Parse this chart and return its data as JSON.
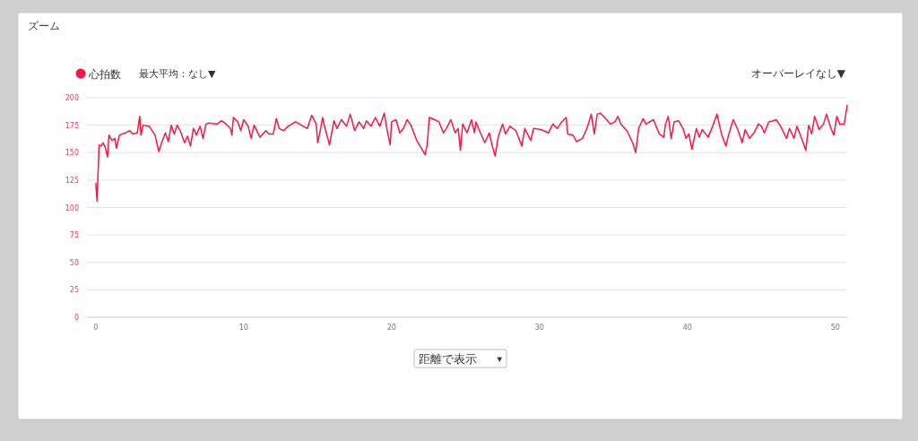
{
  "chart_data": {
    "type": "line",
    "title": "ズーム",
    "annotations": [
      "最大平均：なし▼",
      "オーバーレイなし▼",
      "距離で表示",
      "▾"
    ],
    "x": [
      0,
      0.08,
      0.22,
      0.38,
      0.48,
      0.63,
      0.79,
      0.89,
      1.09,
      1.29,
      1.39,
      1.6,
      2.0,
      2.3,
      2.5,
      2.8,
      2.97,
      3.05,
      3.2,
      3.6,
      4.0,
      4.26,
      4.5,
      4.7,
      4.9,
      5.1,
      5.3,
      5.5,
      5.7,
      6.0,
      6.2,
      6.4,
      6.6,
      6.8,
      7.05,
      7.25,
      7.45,
      7.65,
      8.2,
      8.5,
      8.8,
      9.1,
      9.2,
      9.3,
      9.6,
      9.8,
      10.0,
      10.3,
      10.5,
      10.7,
      11.1,
      11.5,
      11.7,
      12.0,
      12.2,
      12.4,
      12.7,
      13.0,
      13.5,
      13.9,
      14.3,
      14.6,
      14.9,
      15.0,
      15.2,
      15.33,
      15.5,
      15.8,
      16.1,
      16.3,
      16.6,
      16.95,
      17.2,
      17.5,
      17.8,
      18.1,
      18.3,
      18.6,
      18.9,
      19.2,
      19.5,
      19.7,
      19.9,
      20.0,
      20.3,
      20.55,
      20.8,
      21.05,
      21.3,
      21.7,
      22.1,
      22.26,
      22.4,
      22.55,
      22.9,
      23.2,
      23.5,
      23.7,
      24.0,
      24.3,
      24.5,
      24.65,
      24.8,
      25.1,
      25.4,
      25.6,
      25.7,
      26.0,
      26.3,
      26.6,
      26.8,
      27.0,
      27.2,
      27.5,
      27.7,
      28.0,
      28.4,
      28.8,
      29.0,
      29.4,
      29.6,
      30.1,
      30.6,
      30.9,
      31.2,
      31.5,
      31.8,
      31.9,
      32.26,
      32.5,
      32.9,
      33.2,
      33.5,
      33.7,
      33.9,
      34.1,
      34.4,
      34.8,
      35.1,
      35.3,
      35.5,
      35.9,
      36.3,
      36.5,
      36.7,
      37.0,
      37.2,
      37.7,
      38.1,
      38.4,
      38.5,
      38.7,
      38.9,
      39.1,
      39.4,
      39.7,
      39.9,
      40.1,
      40.3,
      40.6,
      40.8,
      41.0,
      41.4,
      41.7,
      42.0,
      42.3,
      42.6,
      42.8,
      43.1,
      43.4,
      43.7,
      43.9,
      44.2,
      44.5,
      44.8,
      45.0,
      45.2,
      45.5,
      45.8,
      46.0,
      46.3,
      46.7,
      46.9,
      47.2,
      47.4,
      47.8,
      48.0,
      48.2,
      48.4,
      48.6,
      48.9,
      49.2,
      49.4,
      49.7,
      49.9,
      50.1,
      50.3,
      50.6,
      50.8
    ],
    "series": [
      {
        "name": "心拍数",
        "color": "#ff1447",
        "values": [
          122,
          106,
          157,
          156,
          159,
          155,
          146,
          166,
          161,
          163,
          154,
          166,
          168,
          170,
          167,
          168,
          183,
          166,
          175,
          174,
          166,
          151,
          161,
          168,
          160,
          175,
          167,
          175,
          170,
          159,
          165,
          156,
          172,
          166,
          174,
          163,
          176,
          177,
          176,
          179,
          176,
          172,
          166,
          182,
          178,
          170,
          180,
          174,
          163,
          175,
          164,
          170,
          167,
          167,
          181,
          172,
          170,
          174,
          178,
          175,
          172,
          184,
          176,
          159,
          172,
          182,
          172,
          157,
          179,
          172,
          180,
          174,
          185,
          170,
          178,
          172,
          179,
          174,
          182,
          174,
          186,
          170,
          157,
          178,
          180,
          168,
          172,
          180,
          175,
          161,
          152,
          148,
          157,
          182,
          180,
          178,
          168,
          172,
          180,
          168,
          172,
          152,
          176,
          168,
          180,
          168,
          178,
          168,
          159,
          168,
          156,
          147,
          164,
          176,
          167,
          174,
          170,
          156,
          172,
          161,
          172,
          171,
          168,
          176,
          172,
          178,
          182,
          167,
          166,
          160,
          163,
          172,
          185,
          167,
          185,
          186,
          182,
          176,
          178,
          183,
          176,
          170,
          159,
          150,
          172,
          181,
          176,
          180,
          167,
          164,
          175,
          183,
          163,
          178,
          179,
          172,
          163,
          167,
          153,
          172,
          164,
          171,
          164,
          174,
          185,
          167,
          156,
          167,
          180,
          171,
          159,
          171,
          163,
          168,
          176,
          174,
          168,
          178,
          179,
          180,
          174,
          163,
          172,
          163,
          174,
          160,
          152,
          175,
          167,
          183,
          171,
          176,
          185,
          172,
          166,
          183,
          176,
          176,
          193
        ]
      }
    ],
    "xlim": [
      -0.6,
      50.8
    ],
    "ylim": [
      0,
      200
    ],
    "xticks": [
      0,
      10,
      20,
      30,
      40,
      50
    ],
    "yticks": [
      0,
      25,
      50,
      75,
      100,
      125,
      150,
      175,
      200
    ],
    "grid": "y",
    "legend": "top left"
  }
}
